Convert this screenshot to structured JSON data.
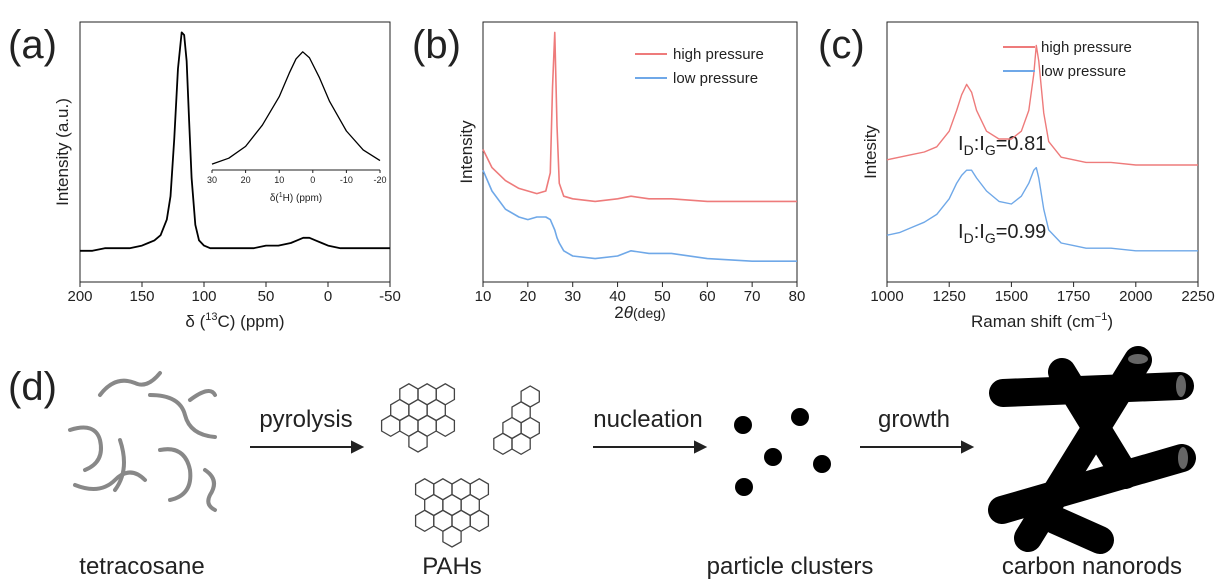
{
  "chart_data": [
    {
      "type": "line",
      "panel": "(a)",
      "ylabel": "Intensity (a.u.)",
      "xlabel": [
        "δ (",
        "13",
        "C) (ppm)"
      ],
      "xlim": [
        200,
        -50
      ],
      "xticks": [
        200,
        150,
        100,
        50,
        0,
        -50
      ],
      "ylim": [
        0,
        1
      ],
      "x": [
        200,
        190,
        180,
        170,
        160,
        150,
        145,
        140,
        135,
        130,
        127,
        124,
        121,
        118,
        116,
        114,
        112,
        110,
        107,
        104,
        100,
        95,
        90,
        80,
        70,
        60,
        50,
        40,
        30,
        25,
        20,
        15,
        10,
        5,
        0,
        -10,
        -20,
        -30,
        -40,
        -50
      ],
      "series": [
        {
          "color": "#000000",
          "values": [
            0.12,
            0.12,
            0.13,
            0.13,
            0.13,
            0.14,
            0.15,
            0.16,
            0.18,
            0.24,
            0.33,
            0.55,
            0.82,
            0.96,
            0.95,
            0.85,
            0.62,
            0.4,
            0.22,
            0.16,
            0.14,
            0.13,
            0.13,
            0.13,
            0.13,
            0.13,
            0.14,
            0.14,
            0.15,
            0.16,
            0.17,
            0.17,
            0.16,
            0.15,
            0.14,
            0.13,
            0.13,
            0.13,
            0.13,
            0.13
          ]
        }
      ]
    },
    {
      "type": "line",
      "xlabel": [
        "δ(",
        "1",
        "H) (ppm)"
      ],
      "xlim": [
        30,
        -20
      ],
      "xticks": [
        30,
        20,
        10,
        0,
        -10,
        -20
      ],
      "ylim": [
        0,
        1.1
      ],
      "x": [
        30,
        25,
        20,
        15,
        10,
        7,
        5,
        3,
        1,
        -2,
        -5,
        -10,
        -15,
        -20
      ],
      "series": [
        {
          "color": "#000000",
          "values": [
            0.05,
            0.1,
            0.2,
            0.38,
            0.62,
            0.82,
            0.94,
            1.0,
            0.95,
            0.78,
            0.58,
            0.33,
            0.17,
            0.08
          ]
        }
      ]
    },
    {
      "type": "line",
      "panel": "(b)",
      "ylabel": "Intensity",
      "xlabel": [
        "2",
        "θ",
        "(deg)"
      ],
      "xlim": [
        10,
        80
      ],
      "xticks": [
        10,
        20,
        30,
        40,
        50,
        60,
        70,
        80
      ],
      "ylim": [
        0,
        1
      ],
      "legend": "upper right",
      "x": [
        10,
        12,
        15,
        18,
        20,
        22,
        24,
        25,
        25.5,
        26,
        26.5,
        27,
        28,
        30,
        35,
        40,
        43,
        47,
        52,
        60,
        70,
        80
      ],
      "series": [
        {
          "name": "high pressure",
          "color": "#ee7b7b",
          "values": [
            0.51,
            0.44,
            0.39,
            0.36,
            0.35,
            0.34,
            0.35,
            0.42,
            0.75,
            0.96,
            0.6,
            0.38,
            0.33,
            0.32,
            0.31,
            0.32,
            0.33,
            0.32,
            0.32,
            0.31,
            0.31,
            0.31
          ]
        },
        {
          "name": "low pressure",
          "color": "#6fa8e8",
          "values": [
            0.43,
            0.35,
            0.28,
            0.25,
            0.24,
            0.25,
            0.25,
            0.24,
            0.22,
            0.2,
            0.17,
            0.15,
            0.12,
            0.1,
            0.09,
            0.1,
            0.12,
            0.11,
            0.11,
            0.09,
            0.08,
            0.08
          ]
        }
      ]
    },
    {
      "type": "line",
      "panel": "(c)",
      "ylabel": "Intesity",
      "xlabel": [
        "Raman shift (cm",
        "−1",
        ")"
      ],
      "xlim": [
        1000,
        2250
      ],
      "xticks": [
        1000,
        1250,
        1500,
        1750,
        2000,
        2250
      ],
      "ylim": [
        0,
        1
      ],
      "legend": "upper right",
      "annotations": [
        [
          "I",
          "D",
          ":I",
          "G",
          "=0.81"
        ],
        [
          "I",
          "D",
          ":I",
          "G",
          "=0.99"
        ]
      ],
      "x": [
        1000,
        1050,
        1100,
        1150,
        1200,
        1250,
        1280,
        1300,
        1320,
        1340,
        1360,
        1400,
        1450,
        1500,
        1540,
        1570,
        1590,
        1600,
        1610,
        1630,
        1650,
        1700,
        1750,
        1800,
        1900,
        2000,
        2100,
        2250
      ],
      "series": [
        {
          "name": "high pressure",
          "color": "#ee7b7b",
          "values": [
            0.47,
            0.48,
            0.49,
            0.5,
            0.52,
            0.58,
            0.66,
            0.72,
            0.76,
            0.73,
            0.66,
            0.58,
            0.55,
            0.55,
            0.58,
            0.66,
            0.8,
            0.91,
            0.85,
            0.65,
            0.54,
            0.48,
            0.47,
            0.46,
            0.46,
            0.45,
            0.45,
            0.45
          ]
        },
        {
          "name": "low pressure",
          "color": "#6fa8e8",
          "values": [
            0.18,
            0.19,
            0.21,
            0.23,
            0.26,
            0.32,
            0.38,
            0.41,
            0.43,
            0.43,
            0.4,
            0.35,
            0.31,
            0.3,
            0.33,
            0.38,
            0.43,
            0.44,
            0.4,
            0.28,
            0.2,
            0.15,
            0.14,
            0.13,
            0.13,
            0.12,
            0.12,
            0.12
          ]
        }
      ]
    }
  ],
  "diagram": {
    "label": "(d)",
    "steps": [
      "pyrolysis",
      "nucleation",
      "growth"
    ],
    "stages": [
      "tetracosane",
      "PAHs",
      "particle clusters",
      "carbon nanorods"
    ]
  }
}
